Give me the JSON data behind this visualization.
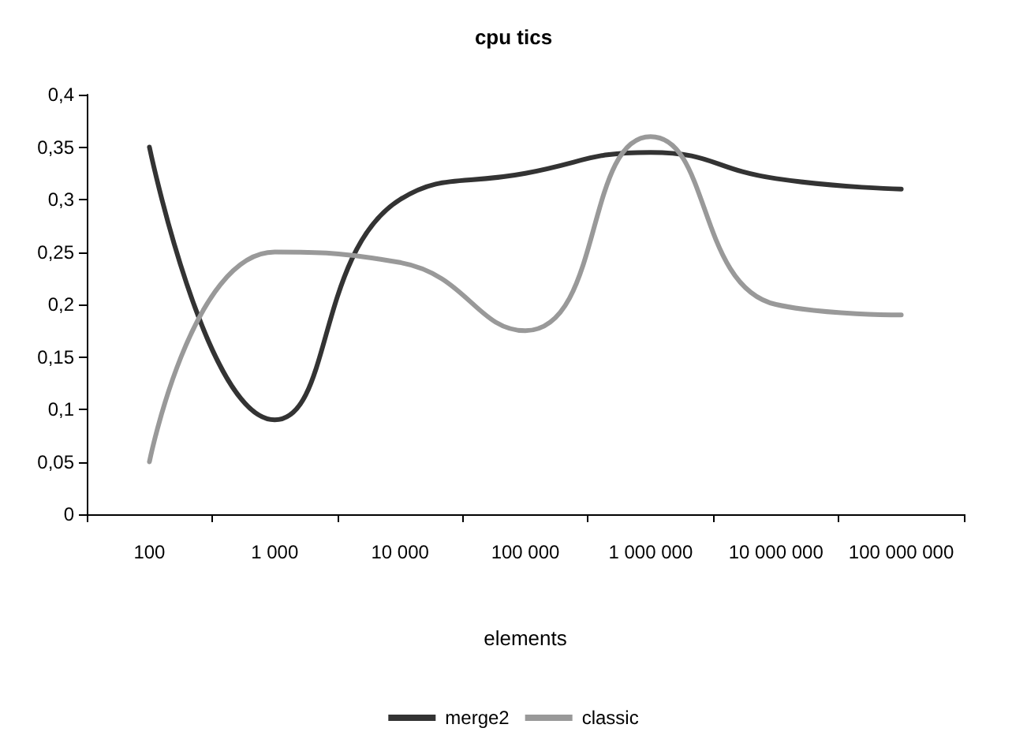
{
  "chart_data": {
    "type": "line",
    "title": "cpu tics",
    "xlabel": "elements",
    "categories": [
      "100",
      "1 000",
      "10 000",
      "100 000",
      "1 000 000",
      "10 000 000",
      "100 000 000"
    ],
    "series": [
      {
        "name": "merge2",
        "color": "#333333",
        "values": [
          0.35,
          0.09,
          0.3,
          0.325,
          0.345,
          0.32,
          0.31
        ]
      },
      {
        "name": "classic",
        "color": "#999999",
        "values": [
          0.05,
          0.25,
          0.24,
          0.175,
          0.36,
          0.2,
          0.19
        ]
      }
    ],
    "ylim": [
      0,
      0.4
    ],
    "yticks": [
      {
        "value": 0,
        "label": "0"
      },
      {
        "value": 0.05,
        "label": "0,05"
      },
      {
        "value": 0.1,
        "label": "0,1"
      },
      {
        "value": 0.15,
        "label": "0,15"
      },
      {
        "value": 0.2,
        "label": "0,2"
      },
      {
        "value": 0.25,
        "label": "0,25"
      },
      {
        "value": 0.3,
        "label": "0,3"
      },
      {
        "value": 0.35,
        "label": "0,35"
      },
      {
        "value": 0.4,
        "label": "0,4"
      }
    ],
    "grid": false,
    "legend": "bottom",
    "marker": "none",
    "line_style": "solid"
  }
}
